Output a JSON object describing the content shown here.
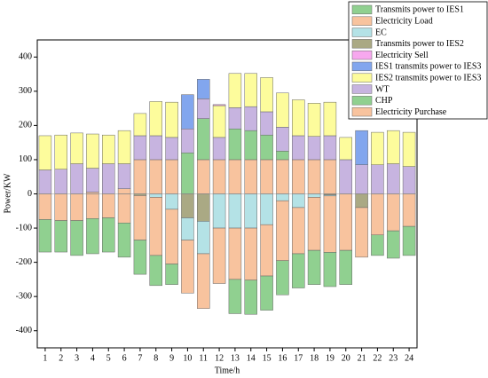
{
  "chart_data": {
    "type": "bar",
    "stacked": true,
    "x_label": "Time/h",
    "y_label": "Power/KW",
    "categories": [
      "1",
      "2",
      "3",
      "4",
      "5",
      "6",
      "7",
      "8",
      "9",
      "10",
      "11",
      "12",
      "13",
      "14",
      "15",
      "16",
      "17",
      "18",
      "19",
      "20",
      "21",
      "22",
      "23",
      "24"
    ],
    "ylim": [
      -450,
      450
    ],
    "yticks": [
      -400,
      -300,
      -200,
      -100,
      0,
      100,
      200,
      300,
      400
    ],
    "legend": "upper right",
    "series": [
      {
        "name": "Transmits power to IES1",
        "color": "#90d090",
        "values": [
          -95,
          -92,
          -102,
          -103,
          -100,
          -100,
          -100,
          -88,
          -60,
          0,
          0,
          0,
          -100,
          -100,
          -100,
          -100,
          -100,
          -100,
          -100,
          -100,
          0,
          -60,
          -80,
          -85
        ]
      },
      {
        "name": "Electricity Load",
        "color": "#f8c39e",
        "values": [
          -75,
          -78,
          -78,
          -72,
          -70,
          -85,
          -130,
          -170,
          -160,
          -155,
          -160,
          -162,
          -150,
          -152,
          -150,
          -175,
          -135,
          -155,
          -165,
          -165,
          -145,
          -120,
          -108,
          -95
        ]
      },
      {
        "name": "EC",
        "color": "#b4e2e6",
        "values": [
          0,
          0,
          0,
          0,
          0,
          0,
          0,
          -10,
          -45,
          -65,
          -95,
          -100,
          -100,
          -100,
          -90,
          -20,
          -40,
          -10,
          -3,
          0,
          0,
          0,
          0,
          0
        ]
      },
      {
        "name": "Transmits power to IES2",
        "color": "#aaa984",
        "values": [
          0,
          0,
          0,
          0,
          0,
          0,
          -5,
          0,
          0,
          -70,
          -80,
          0,
          0,
          0,
          0,
          0,
          0,
          0,
          -3,
          0,
          -40,
          0,
          0,
          0
        ]
      },
      {
        "name": "Electricity Sell",
        "color": "#f7a8ee",
        "values": [
          0,
          0,
          0,
          0,
          0,
          0,
          0,
          0,
          0,
          0,
          0,
          3,
          0,
          0,
          0,
          0,
          0,
          0,
          0,
          0,
          0,
          0,
          0,
          0
        ]
      },
      {
        "name": "IES1 transmits power to IES3",
        "color": "#82a6ee",
        "values": [
          0,
          0,
          0,
          0,
          0,
          0,
          0,
          0,
          0,
          100,
          57,
          0,
          0,
          0,
          0,
          0,
          0,
          0,
          0,
          0,
          100,
          0,
          0,
          0
        ]
      },
      {
        "name": "IES2 transmits power to IES3",
        "color": "#fdfc9c",
        "values": [
          100,
          100,
          90,
          100,
          84,
          97,
          65,
          100,
          103,
          0,
          0,
          93,
          100,
          97,
          100,
          100,
          105,
          97,
          98,
          65,
          0,
          95,
          97,
          100
        ]
      },
      {
        "name": "WT",
        "color": "#c7b4e0",
        "values": [
          70,
          72,
          88,
          70,
          88,
          73,
          70,
          70,
          65,
          70,
          58,
          65,
          62,
          70,
          68,
          70,
          70,
          68,
          70,
          100,
          85,
          85,
          88,
          80
        ]
      },
      {
        "name": "CHP",
        "color": "#90d090",
        "values": [
          0,
          0,
          0,
          0,
          0,
          0,
          0,
          0,
          0,
          120,
          120,
          0,
          90,
          85,
          72,
          25,
          0,
          0,
          0,
          0,
          0,
          0,
          0,
          0
        ]
      },
      {
        "name": "Electricity Purchase",
        "color": "#f8c39e",
        "values": [
          0,
          0,
          0,
          5,
          0,
          15,
          100,
          100,
          100,
          0,
          100,
          100,
          100,
          100,
          100,
          100,
          100,
          100,
          100,
          0,
          0,
          0,
          0,
          0
        ]
      }
    ]
  }
}
